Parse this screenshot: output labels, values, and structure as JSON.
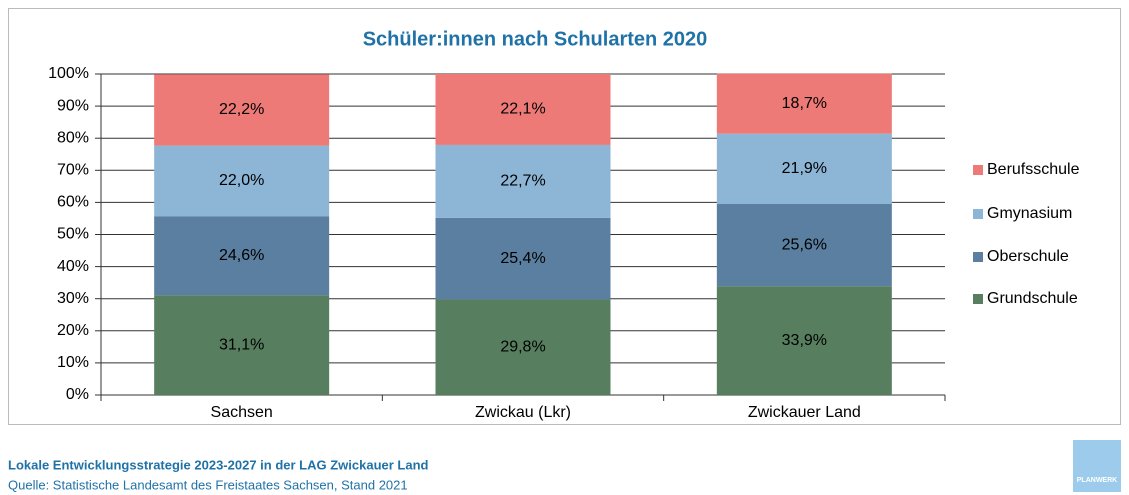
{
  "chart_data": {
    "type": "stacked_bar",
    "title": "Schüler:innen nach Schularten 2020",
    "categories": [
      "Sachsen",
      "Zwickau (Lkr)",
      "Zwickauer Land"
    ],
    "series": [
      {
        "name": "Grundschule",
        "color": "#577f5f",
        "values": [
          31.1,
          29.8,
          33.9
        ],
        "value_labels": [
          "31,1%",
          "29,8%",
          "33,9%"
        ]
      },
      {
        "name": "Oberschule",
        "color": "#5b7fa0",
        "values": [
          24.6,
          25.4,
          25.6
        ],
        "value_labels": [
          "24,6%",
          "25,4%",
          "25,6%"
        ]
      },
      {
        "name": "Gmynasium",
        "color": "#8db5d6",
        "values": [
          22.0,
          22.7,
          21.9
        ],
        "value_labels": [
          "22,0%",
          "22,7%",
          "21,9%"
        ]
      },
      {
        "name": "Berufsschule",
        "color": "#ee7a78",
        "values": [
          22.2,
          22.1,
          18.7
        ],
        "value_labels": [
          "22,2%",
          "22,1%",
          "18,7%"
        ]
      }
    ],
    "ylim": [
      0,
      100
    ],
    "yticks": [
      {
        "value": 0,
        "label": "0%"
      },
      {
        "value": 10,
        "label": "10%"
      },
      {
        "value": 20,
        "label": "20%"
      },
      {
        "value": 30,
        "label": "30%"
      },
      {
        "value": 40,
        "label": "40%"
      },
      {
        "value": 50,
        "label": "50%"
      },
      {
        "value": 60,
        "label": "60%"
      },
      {
        "value": 70,
        "label": "70%"
      },
      {
        "value": 80,
        "label": "80%"
      },
      {
        "value": 90,
        "label": "90%"
      },
      {
        "value": 100,
        "label": "100%"
      }
    ],
    "grid": true,
    "legend": "right"
  },
  "footer": {
    "title": "Lokale Entwicklungsstrategie 2023-2027 in der LAG Zwickauer Land",
    "source": "Quelle: Statistische Landesamt des Freistaates Sachsen, Stand 2021",
    "logo": "PLANWERK"
  }
}
